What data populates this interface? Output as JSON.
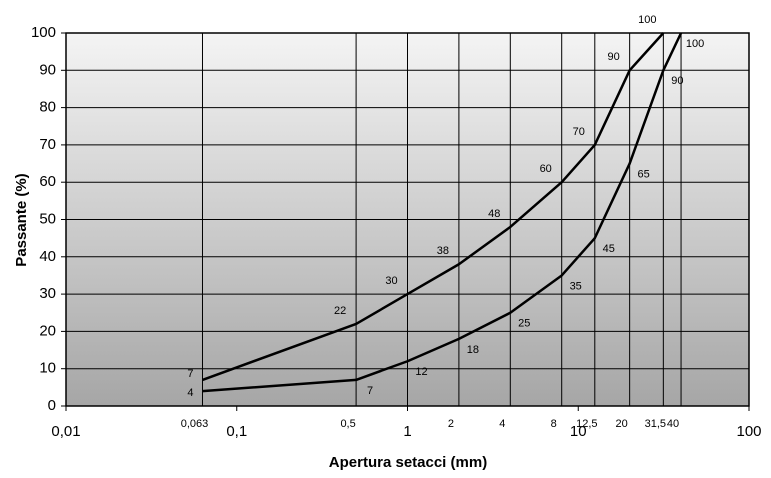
{
  "chart_data": {
    "type": "line",
    "y_label": "Passante (%)",
    "x_label": "Apertura setacci (mm)",
    "x": [
      0.063,
      0.5,
      1,
      2,
      4,
      8,
      12.5,
      20,
      31.5,
      40
    ],
    "x_labels": [
      "0,063",
      "0,5",
      null,
      "2",
      "4",
      "8",
      "12,5",
      "20",
      "31,5",
      "40"
    ],
    "series": [
      {
        "color": "#000000",
        "values": [
          7,
          22,
          30,
          38,
          48,
          60,
          70,
          90,
          100,
          null
        ]
      },
      {
        "color": "#000000",
        "values": [
          4,
          7,
          12,
          18,
          25,
          35,
          45,
          65,
          90,
          100
        ]
      }
    ],
    "xscale": "log",
    "xlim": [
      0.01,
      100
    ],
    "xticks": [
      {
        "value": 0.01,
        "label": "0,01"
      },
      {
        "value": 0.1,
        "label": "0,1"
      },
      1,
      10,
      100
    ],
    "ylim": [
      0,
      100
    ],
    "yticks": [
      0,
      10,
      20,
      30,
      40,
      50,
      60,
      70,
      80,
      90,
      100
    ],
    "grid": true
  }
}
